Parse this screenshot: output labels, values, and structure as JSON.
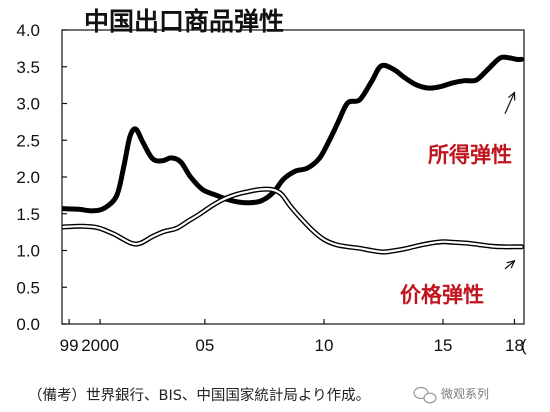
{
  "chart_data": {
    "type": "line",
    "title": "中国出口商品弹性",
    "ylim": [
      0.0,
      4.0
    ],
    "y_ticks": [
      "0.0",
      "0.5",
      "1.0",
      "1.5",
      "2.0",
      "2.5",
      "3.0",
      "3.5",
      "4.0"
    ],
    "xlim": [
      1999.0,
      2018.4
    ],
    "x_ticks": [
      {
        "x": 1999.3,
        "label": "99"
      },
      {
        "x": 2000.6,
        "label": "2000"
      },
      {
        "x": 2005.0,
        "label": "05"
      },
      {
        "x": 2010.0,
        "label": "10"
      },
      {
        "x": 2015.0,
        "label": "15"
      },
      {
        "x": 2018.0,
        "label": "18"
      }
    ],
    "series": [
      {
        "name": "所得弹性",
        "style": "bold",
        "color": "#000000",
        "label_color": "#c0141e",
        "points": [
          [
            1999.0,
            1.57
          ],
          [
            1999.7,
            1.56
          ],
          [
            2000.3,
            1.54
          ],
          [
            2000.8,
            1.58
          ],
          [
            2001.3,
            1.75
          ],
          [
            2001.6,
            2.15
          ],
          [
            2001.85,
            2.55
          ],
          [
            2002.1,
            2.65
          ],
          [
            2002.4,
            2.47
          ],
          [
            2002.8,
            2.25
          ],
          [
            2003.2,
            2.22
          ],
          [
            2003.6,
            2.26
          ],
          [
            2004.0,
            2.2
          ],
          [
            2004.4,
            2.0
          ],
          [
            2004.9,
            1.83
          ],
          [
            2005.4,
            1.76
          ],
          [
            2005.9,
            1.7
          ],
          [
            2006.4,
            1.66
          ],
          [
            2006.9,
            1.65
          ],
          [
            2007.4,
            1.68
          ],
          [
            2007.9,
            1.8
          ],
          [
            2008.3,
            1.97
          ],
          [
            2008.8,
            2.08
          ],
          [
            2009.3,
            2.12
          ],
          [
            2009.8,
            2.25
          ],
          [
            2010.2,
            2.48
          ],
          [
            2010.6,
            2.75
          ],
          [
            2011.0,
            3.01
          ],
          [
            2011.5,
            3.05
          ],
          [
            2012.0,
            3.3
          ],
          [
            2012.4,
            3.51
          ],
          [
            2012.9,
            3.47
          ],
          [
            2013.4,
            3.35
          ],
          [
            2013.9,
            3.25
          ],
          [
            2014.4,
            3.21
          ],
          [
            2014.9,
            3.23
          ],
          [
            2015.4,
            3.28
          ],
          [
            2015.9,
            3.31
          ],
          [
            2016.4,
            3.32
          ],
          [
            2016.9,
            3.47
          ],
          [
            2017.4,
            3.62
          ],
          [
            2017.8,
            3.62
          ],
          [
            2018.1,
            3.6
          ],
          [
            2018.3,
            3.6
          ]
        ]
      },
      {
        "name": "价格弹性",
        "style": "double",
        "color": "#000000",
        "label_color": "#c0141e",
        "points": [
          [
            1999.0,
            1.32
          ],
          [
            1999.8,
            1.33
          ],
          [
            2000.5,
            1.31
          ],
          [
            2001.2,
            1.22
          ],
          [
            2001.9,
            1.1
          ],
          [
            2002.3,
            1.1
          ],
          [
            2002.8,
            1.19
          ],
          [
            2003.3,
            1.26
          ],
          [
            2003.8,
            1.3
          ],
          [
            2004.3,
            1.4
          ],
          [
            2004.8,
            1.5
          ],
          [
            2005.3,
            1.61
          ],
          [
            2005.8,
            1.7
          ],
          [
            2006.3,
            1.76
          ],
          [
            2006.8,
            1.8
          ],
          [
            2007.3,
            1.83
          ],
          [
            2007.8,
            1.83
          ],
          [
            2008.2,
            1.77
          ],
          [
            2008.6,
            1.6
          ],
          [
            2009.0,
            1.45
          ],
          [
            2009.5,
            1.28
          ],
          [
            2010.0,
            1.15
          ],
          [
            2010.5,
            1.08
          ],
          [
            2011.0,
            1.05
          ],
          [
            2011.5,
            1.03
          ],
          [
            2012.0,
            1.0
          ],
          [
            2012.5,
            0.98
          ],
          [
            2013.0,
            1.0
          ],
          [
            2013.5,
            1.03
          ],
          [
            2014.0,
            1.07
          ],
          [
            2014.5,
            1.1
          ],
          [
            2015.0,
            1.12
          ],
          [
            2015.5,
            1.11
          ],
          [
            2016.0,
            1.1
          ],
          [
            2016.5,
            1.08
          ],
          [
            2017.0,
            1.06
          ],
          [
            2017.5,
            1.05
          ],
          [
            2018.0,
            1.05
          ],
          [
            2018.3,
            1.05
          ]
        ]
      }
    ],
    "annotations": [
      {
        "text": "所得弹性",
        "arrow_to": [
          2018.0,
          3.15
        ],
        "arrow_from": [
          2017.6,
          2.86
        ]
      },
      {
        "text": "价格弹性",
        "arrow_to": [
          2018.0,
          0.86
        ],
        "arrow_from": [
          2017.6,
          0.75
        ]
      }
    ]
  },
  "extra_tick": "(",
  "note": "（備考）世界銀行、BIS、中国国家統計局より作成。",
  "watermark": "微观系列"
}
